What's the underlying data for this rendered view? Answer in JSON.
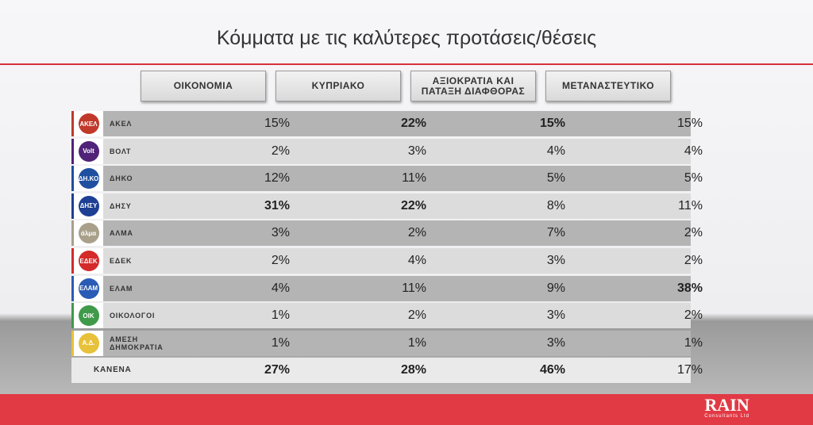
{
  "title": "Κόμματα με τις καλύτερες προτάσεις/θέσεις",
  "chart_data": {
    "type": "table",
    "title": "Κόμματα με τις καλύτερες προτάσεις/θέσεις",
    "columns": [
      "ΟΙΚΟΝΟΜΙΑ",
      "ΚΥΠΡΙΑΚΟ",
      "ΑΞΙΟΚΡΑΤΙΑ ΚΑΙ ΠΑΤΑΞΗ ΔΙΑΦΘΟΡΑΣ",
      "ΜΕΤΑΝΑΣΤΕΥΤΙΚΟ"
    ],
    "rows": [
      {
        "party": "ΑΚΕΛ",
        "color": "#c0392b",
        "values": [
          "15%",
          "22%",
          "15%",
          "15%"
        ],
        "bold": [
          false,
          true,
          true,
          false
        ]
      },
      {
        "party": "ΒΟΛΤ",
        "color": "#502379",
        "values": [
          "2%",
          "3%",
          "4%",
          "4%"
        ],
        "bold": [
          false,
          false,
          false,
          false
        ]
      },
      {
        "party": "ΔΗΚΟ",
        "color": "#1f4fa0",
        "values": [
          "12%",
          "11%",
          "5%",
          "5%"
        ],
        "bold": [
          false,
          false,
          false,
          false
        ]
      },
      {
        "party": "ΔΗΣΥ",
        "color": "#1d3f94",
        "values": [
          "31%",
          "22%",
          "8%",
          "11%"
        ],
        "bold": [
          true,
          true,
          false,
          false
        ]
      },
      {
        "party": "ΑΛΜΑ",
        "color": "#a8a08a",
        "values": [
          "3%",
          "2%",
          "7%",
          "2%"
        ],
        "bold": [
          false,
          false,
          false,
          false
        ]
      },
      {
        "party": "ΕΔΕΚ",
        "color": "#d42a2a",
        "values": [
          "2%",
          "4%",
          "3%",
          "2%"
        ],
        "bold": [
          false,
          false,
          false,
          false
        ]
      },
      {
        "party": "ΕΛΑΜ",
        "color": "#2a5bb5",
        "values": [
          "4%",
          "11%",
          "9%",
          "38%"
        ],
        "bold": [
          false,
          false,
          false,
          true
        ]
      },
      {
        "party": "ΟΙΚΟΛΟΓΟΙ",
        "color": "#3f9a4a",
        "values": [
          "1%",
          "2%",
          "3%",
          "2%"
        ],
        "bold": [
          false,
          false,
          false,
          false
        ]
      },
      {
        "party": "ΑΜΕΣΗ ΔΗΜΟΚΡΑΤΙΑ",
        "color": "#e8c13a",
        "values": [
          "1%",
          "1%",
          "3%",
          "1%"
        ],
        "bold": [
          false,
          false,
          false,
          false
        ]
      },
      {
        "party": "ΚΑΝΕΝΑ",
        "values": [
          "27%",
          "28%",
          "46%",
          "17%"
        ],
        "bold": [
          true,
          true,
          true,
          false
        ]
      }
    ]
  },
  "logos": [
    "ΑΚΕΛ",
    "Volt",
    "ΔΗ.ΚΟ",
    "ΔΗΣΥ",
    "άλμα",
    "ΕΔΕΚ",
    "ΕΛΑΜ",
    "ΟΙΚ",
    "Α.Δ."
  ],
  "brand": {
    "name": "RAIN",
    "sub": "Consultants Ltd"
  },
  "colors": {
    "accent": "#e13a45"
  }
}
